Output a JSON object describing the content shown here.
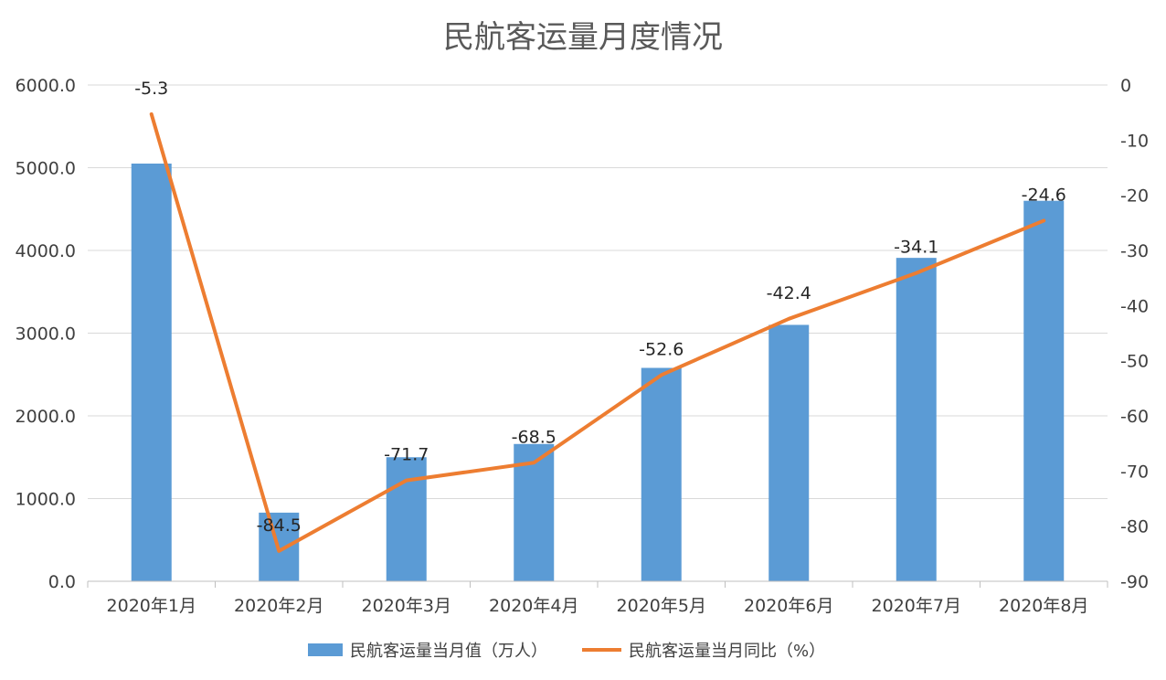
{
  "chart_data": {
    "type": "bar+line",
    "title": "民航客运量月度情况",
    "categories": [
      "2020年1月",
      "2020年2月",
      "2020年3月",
      "2020年4月",
      "2020年5月",
      "2020年6月",
      "2020年7月",
      "2020年8月"
    ],
    "series": [
      {
        "name": "民航客运量当月值（万人）",
        "type": "bar",
        "axis": "left",
        "color": "#5b9bd5",
        "values": [
          5050,
          830,
          1500,
          1660,
          2580,
          3100,
          3910,
          4600
        ]
      },
      {
        "name": "民航客运量当月同比（%）",
        "type": "line",
        "axis": "right",
        "color": "#ed7d31",
        "values": [
          -5.3,
          -84.5,
          -71.7,
          -68.5,
          -52.6,
          -42.4,
          -34.1,
          -24.6
        ],
        "labels": [
          "-5.3",
          "-84.5",
          "-71.7",
          "-68.5",
          "-52.6",
          "-42.4",
          "-34.1",
          "-24.6"
        ]
      }
    ],
    "y_left": {
      "ylim": [
        0,
        6000
      ],
      "ticks": [
        "0.0",
        "1000.0",
        "2000.0",
        "3000.0",
        "4000.0",
        "5000.0",
        "6000.0"
      ]
    },
    "y_right": {
      "ylim": [
        -90,
        0
      ],
      "ticks": [
        "-90",
        "-80",
        "-70",
        "-60",
        "-50",
        "-40",
        "-30",
        "-20",
        "-10",
        "0"
      ]
    },
    "grid": true,
    "legend_position": "bottom"
  }
}
